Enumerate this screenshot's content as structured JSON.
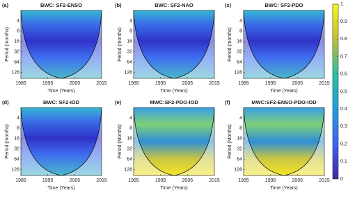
{
  "chart_data": [
    {
      "type": "heatmap",
      "label": "(a)",
      "title": "BWC: SF2-ENSO",
      "xlabel": "Time (Years)",
      "ylabel": "Period (months)",
      "xlim": [
        1985,
        2015
      ],
      "xticks": [
        1985,
        1995,
        2005,
        2015
      ],
      "ylim": [
        2,
        190
      ],
      "yticks": [
        4,
        8,
        16,
        32,
        64,
        128
      ],
      "log_y": true,
      "invert_y": true
    },
    {
      "type": "heatmap",
      "label": "(b)",
      "title": "BWC: SF2-NAO",
      "xlabel": "Time (Years)",
      "ylabel": "Period (months)",
      "xlim": [
        1985,
        2015
      ],
      "xticks": [
        1985,
        1995,
        2005,
        2015
      ],
      "ylim": [
        2,
        190
      ],
      "yticks": [
        4,
        8,
        16,
        32,
        64,
        128
      ],
      "log_y": true,
      "invert_y": true
    },
    {
      "type": "heatmap",
      "label": "(c)",
      "title": "BWC: SF2-PDO",
      "xlabel": "Time (Years)",
      "ylabel": "Period (months)",
      "xlim": [
        1985,
        2015
      ],
      "xticks": [
        1985,
        1995,
        2005,
        2015
      ],
      "ylim": [
        2,
        190
      ],
      "yticks": [
        4,
        8,
        16,
        32,
        64,
        128
      ],
      "log_y": true,
      "invert_y": true
    },
    {
      "type": "heatmap",
      "label": "(d)",
      "title": "BWC: SF2-IOD",
      "xlabel": "Time (Years)",
      "ylabel": "Period (months)",
      "xlim": [
        1985,
        2015
      ],
      "xticks": [
        1985,
        1995,
        2005,
        2015
      ],
      "ylim": [
        2,
        190
      ],
      "yticks": [
        4,
        8,
        16,
        32,
        64,
        128
      ],
      "log_y": true,
      "invert_y": true
    },
    {
      "type": "heatmap",
      "label": "(e)",
      "title": "MWC:SF2-PDO-IOD",
      "xlabel": "Time (Years)",
      "ylabel": "Period (Months)",
      "xlim": [
        1985,
        2015
      ],
      "xticks": [
        1985,
        1995,
        2005,
        2015
      ],
      "ylim": [
        2,
        190
      ],
      "yticks": [
        4,
        8,
        16,
        32,
        64,
        128
      ],
      "log_y": true,
      "invert_y": true
    },
    {
      "type": "heatmap",
      "label": "(f)",
      "title": "MWC:SF2-ENSO-PDO-IOD",
      "xlabel": "Time (Years)",
      "ylabel": "Period (Months)",
      "xlim": [
        1985,
        2015
      ],
      "xticks": [
        1985,
        1995,
        2005,
        2015
      ],
      "ylim": [
        2,
        190
      ],
      "yticks": [
        4,
        8,
        16,
        32,
        64,
        128
      ],
      "log_y": true,
      "invert_y": true
    },
    {
      "type": "colorbar",
      "ylim": [
        0,
        1
      ],
      "yticks": [
        0,
        0.1,
        0.2,
        0.3,
        0.4,
        0.5,
        0.6,
        0.7,
        0.8,
        0.9,
        1
      ]
    }
  ]
}
